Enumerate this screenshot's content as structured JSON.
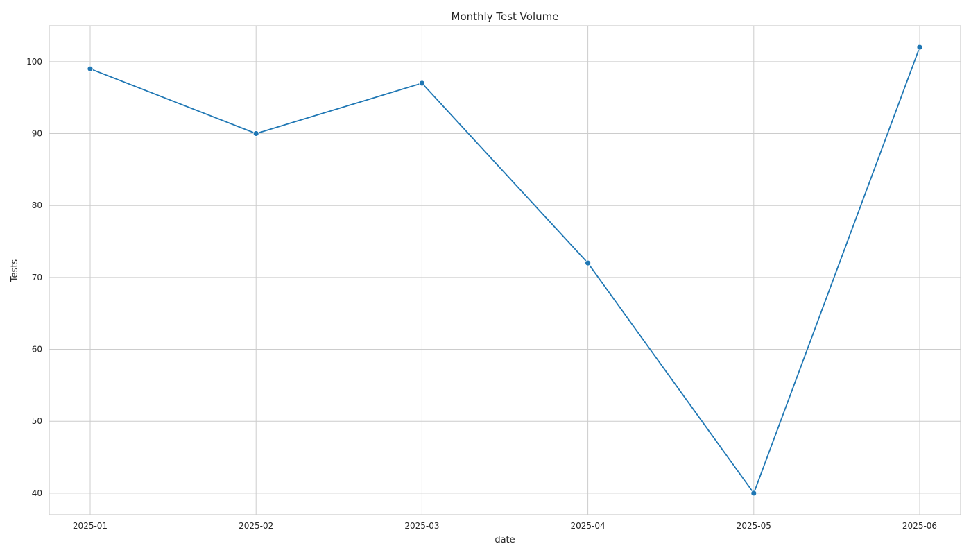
{
  "chart_data": {
    "type": "line",
    "title": "Monthly Test Volume",
    "xlabel": "date",
    "ylabel": "Tests",
    "x": [
      "2025-01",
      "2025-02",
      "2025-03",
      "2025-04",
      "2025-05",
      "2025-06"
    ],
    "series": [
      {
        "name": "",
        "values": [
          99,
          90,
          97,
          72,
          40,
          102
        ],
        "color": "#1f77b4"
      }
    ],
    "y_ticks": [
      40,
      50,
      60,
      70,
      80,
      90,
      100
    ],
    "ylim": [
      37,
      105
    ],
    "grid": true,
    "legend": "none"
  }
}
